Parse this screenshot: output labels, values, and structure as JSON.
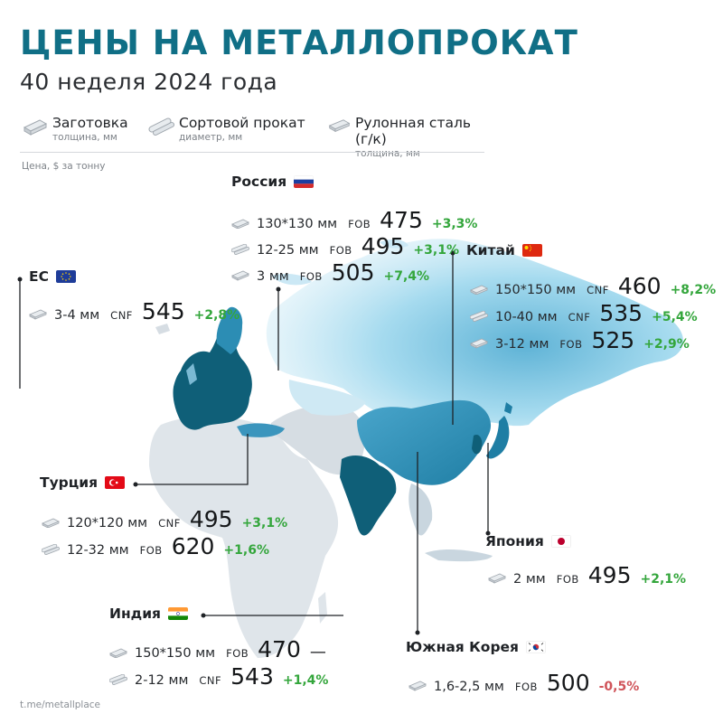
{
  "title": "ЦЕНЫ НА МЕТАЛЛОПРОКАТ",
  "subtitle": "40 неделя 2024 года",
  "legend": [
    {
      "icon": "billet-icon",
      "label": "Заготовка",
      "sub": "толщина, мм"
    },
    {
      "icon": "long-products-icon",
      "label": "Сортовой прокат",
      "sub": "диаметр, мм"
    },
    {
      "icon": "coil-icon",
      "label": "Рулонная сталь (г/к)",
      "sub": "толщина, мм"
    }
  ],
  "unit_note": "Цена, $ за тонну",
  "source": "t.me/metallplace",
  "colors": {
    "accent": "#106f86",
    "positive": "#34a63c",
    "negative": "#d0545a",
    "map_dark": "#0f5f78",
    "map_mid": "#3b95bd",
    "map_light": "#bfe4f2",
    "map_grey": "#d6dde3"
  },
  "chart_data": {
    "type": "table",
    "title": "ЦЕНЫ НА МЕТАЛЛОПРОКАТ",
    "subtitle": "40 неделя 2024 года",
    "unit": "Цена, $ за тонну",
    "regions": [
      {
        "name": "Россия",
        "flag": "russia",
        "rows": [
          {
            "product": "billet",
            "size": "130*130 мм",
            "basis": "FOB",
            "price": "475",
            "change": "+3,3%",
            "dir": "pos"
          },
          {
            "product": "long",
            "size": "12-25 мм",
            "basis": "FOB",
            "price": "495",
            "change": "+3,1%",
            "dir": "pos"
          },
          {
            "product": "coil",
            "size": "3 мм",
            "basis": "FOB",
            "price": "505",
            "change": "+7,4%",
            "dir": "pos"
          }
        ]
      },
      {
        "name": "ЕС",
        "flag": "eu",
        "rows": [
          {
            "product": "coil",
            "size": "3-4 мм",
            "basis": "CNF",
            "price": "545",
            "change": "+2,8%",
            "dir": "pos"
          }
        ]
      },
      {
        "name": "Китай",
        "flag": "china",
        "rows": [
          {
            "product": "billet",
            "size": "150*150 мм",
            "basis": "CNF",
            "price": "460",
            "change": "+8,2%",
            "dir": "pos"
          },
          {
            "product": "long",
            "size": "10-40 мм",
            "basis": "CNF",
            "price": "535",
            "change": "+5,4%",
            "dir": "pos"
          },
          {
            "product": "coil",
            "size": "3-12 мм",
            "basis": "FOB",
            "price": "525",
            "change": "+2,9%",
            "dir": "pos"
          }
        ]
      },
      {
        "name": "Турция",
        "flag": "turkey",
        "rows": [
          {
            "product": "billet",
            "size": "120*120 мм",
            "basis": "CNF",
            "price": "495",
            "change": "+3,1%",
            "dir": "pos"
          },
          {
            "product": "long",
            "size": "12-32 мм",
            "basis": "FOB",
            "price": "620",
            "change": "+1,6%",
            "dir": "pos"
          }
        ]
      },
      {
        "name": "Япония",
        "flag": "japan",
        "rows": [
          {
            "product": "coil",
            "size": "2 мм",
            "basis": "FOB",
            "price": "495",
            "change": "+2,1%",
            "dir": "pos"
          }
        ]
      },
      {
        "name": "Индия",
        "flag": "india",
        "rows": [
          {
            "product": "billet",
            "size": "150*150 мм",
            "basis": "FOB",
            "price": "470",
            "change": "—",
            "dir": "neu"
          },
          {
            "product": "long",
            "size": "2-12 мм",
            "basis": "CNF",
            "price": "543",
            "change": "+1,4%",
            "dir": "pos"
          }
        ]
      },
      {
        "name": "Южная Корея",
        "flag": "korea",
        "rows": [
          {
            "product": "coil",
            "size": "1,6-2,5 мм",
            "basis": "FOB",
            "price": "500",
            "change": "-0,5%",
            "dir": "neg"
          }
        ]
      }
    ]
  }
}
